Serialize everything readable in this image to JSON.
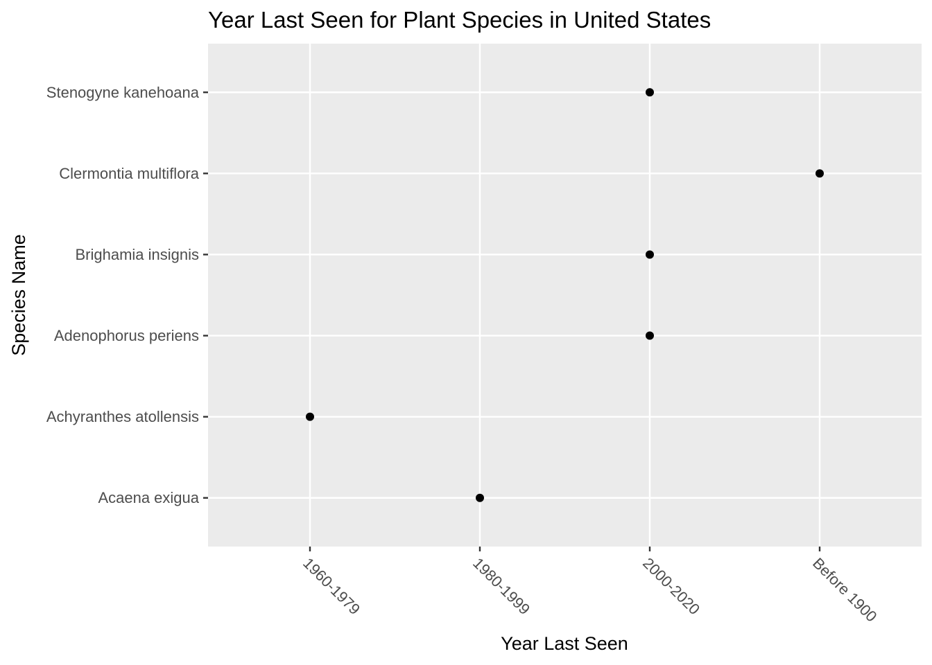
{
  "chart_data": {
    "type": "scatter",
    "title": "Year Last Seen for Plant Species in United States",
    "xlabel": "Year Last Seen",
    "ylabel": "Species Name",
    "x_categories": [
      "1960-1979",
      "1980-1999",
      "2000-2020",
      "Before 1900"
    ],
    "y_categories": [
      "Acaena exigua",
      "Achyranthes atollensis",
      "Adenophorus periens",
      "Brighamia insignis",
      "Clermontia multiflora",
      "Stenogyne kanehoana"
    ],
    "points": [
      {
        "species": "Stenogyne kanehoana",
        "year": "2000-2020"
      },
      {
        "species": "Clermontia multiflora",
        "year": "Before 1900"
      },
      {
        "species": "Brighamia insignis",
        "year": "2000-2020"
      },
      {
        "species": "Adenophorus periens",
        "year": "2000-2020"
      },
      {
        "species": "Achyranthes atollensis",
        "year": "1960-1979"
      },
      {
        "species": "Acaena exigua",
        "year": "1980-1999"
      }
    ],
    "grid": true,
    "legend": "none",
    "colors": {
      "panel": "#ebebeb",
      "grid": "#ffffff",
      "point": "#000000",
      "tick": "#333333"
    }
  }
}
